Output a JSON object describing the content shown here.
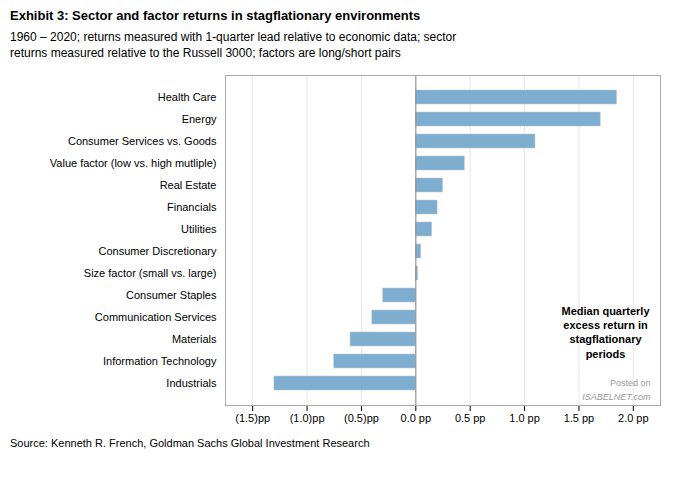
{
  "chart_data": {
    "type": "bar",
    "orientation": "horizontal",
    "title": "Exhibit 3: Sector and factor returns in stagflationary environments",
    "subtitle": "1960 – 2020; returns measured with 1-quarter lead relative to economic data; sector\nreturns measured relative to the Russell 3000; factors are long/short pairs",
    "source": "Source: Kenneth R. French, Goldman Sachs Global Investment Research",
    "annotations": [
      "Median quarterly\nexcess return in\nstagflationary\nperiods",
      "Posted on",
      "ISABELNET.com"
    ],
    "categories": [
      "Health Care",
      "Energy",
      "Consumer Services vs. Goods",
      "Value factor (low vs. high mutliple)",
      "Real Estate",
      "Financials",
      "Utilities",
      "Consumer Discretionary",
      "Size factor (small vs. large)",
      "Consumer Staples",
      "Communication Services",
      "Materials",
      "Information Technology",
      "Industrials"
    ],
    "values": [
      1.85,
      1.7,
      1.1,
      0.45,
      0.25,
      0.2,
      0.15,
      0.05,
      0.02,
      -0.3,
      -0.4,
      -0.6,
      -0.75,
      -1.3
    ],
    "color": "#7eaecf",
    "xlim": [
      -1.75,
      2.25
    ],
    "xticks": [
      {
        "value": -1.5,
        "label": "(1.5)pp"
      },
      {
        "value": -1.0,
        "label": "(1.0)pp"
      },
      {
        "value": -0.5,
        "label": "(0.5)pp"
      },
      {
        "value": 0.0,
        "label": "0.0 pp"
      },
      {
        "value": 0.5,
        "label": "0.5 pp"
      },
      {
        "value": 1.0,
        "label": "1.0 pp"
      },
      {
        "value": 1.5,
        "label": "1.5 pp"
      },
      {
        "value": 2.0,
        "label": "2.0 pp"
      }
    ],
    "grid": true
  }
}
